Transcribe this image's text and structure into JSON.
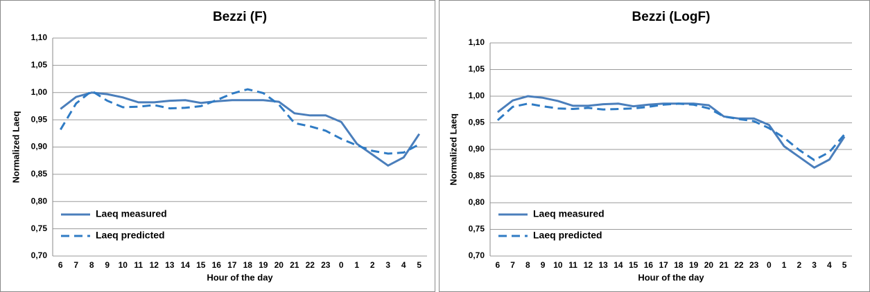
{
  "chart_data": [
    {
      "type": "line",
      "title": "Bezzi (F)",
      "x_label": "Hour of the day",
      "y_label": "Normalized Laeq",
      "categories": [
        "6",
        "7",
        "8",
        "9",
        "10",
        "11",
        "12",
        "13",
        "14",
        "15",
        "16",
        "17",
        "18",
        "19",
        "20",
        "21",
        "22",
        "23",
        "0",
        "1",
        "2",
        "3",
        "4",
        "5"
      ],
      "series": [
        {
          "name": "Laeq measured",
          "color": "#4a7ebb",
          "linestyle": "solid",
          "values": [
            0.97,
            0.992,
            1.0,
            0.997,
            0.991,
            0.982,
            0.982,
            0.985,
            0.986,
            0.981,
            0.984,
            0.986,
            0.986,
            0.986,
            0.983,
            0.962,
            0.958,
            0.958,
            0.946,
            0.906,
            0.886,
            0.866,
            0.881,
            0.924
          ]
        },
        {
          "name": "Laeq predicted",
          "color": "#2f7bc4",
          "linestyle": "dashed",
          "values": [
            0.932,
            0.98,
            1.003,
            0.985,
            0.973,
            0.974,
            0.977,
            0.971,
            0.972,
            0.975,
            0.986,
            0.998,
            1.006,
            0.999,
            0.978,
            0.944,
            0.938,
            0.93,
            0.915,
            0.903,
            0.893,
            0.888,
            0.89,
            0.905
          ]
        }
      ],
      "ylim": [
        0.7,
        1.1
      ],
      "yticks": [
        {
          "value": 0.7,
          "label": "0,70"
        },
        {
          "value": 0.75,
          "label": "0,75"
        },
        {
          "value": 0.8,
          "label": "0,80"
        },
        {
          "value": 0.85,
          "label": "0,85"
        },
        {
          "value": 0.9,
          "label": "0,90"
        },
        {
          "value": 0.95,
          "label": "0,95"
        },
        {
          "value": 1.0,
          "label": "1,00"
        },
        {
          "value": 1.05,
          "label": "1,05"
        },
        {
          "value": 1.1,
          "label": "1,10"
        }
      ],
      "grid": true,
      "legend": "lower left"
    },
    {
      "type": "line",
      "title": "Bezzi (LogF)",
      "x_label": "Hour of the day",
      "y_label": "Normalized Laeq",
      "categories": [
        "6",
        "7",
        "8",
        "9",
        "10",
        "11",
        "12",
        "13",
        "14",
        "15",
        "16",
        "17",
        "18",
        "19",
        "20",
        "21",
        "22",
        "23",
        "0",
        "1",
        "2",
        "3",
        "4",
        "5"
      ],
      "series": [
        {
          "name": "Laeq measured",
          "color": "#4a7ebb",
          "linestyle": "solid",
          "values": [
            0.97,
            0.992,
            1.0,
            0.997,
            0.991,
            0.982,
            0.982,
            0.985,
            0.986,
            0.981,
            0.984,
            0.986,
            0.986,
            0.986,
            0.983,
            0.962,
            0.958,
            0.958,
            0.946,
            0.906,
            0.886,
            0.866,
            0.881,
            0.924
          ]
        },
        {
          "name": "Laeq predicted",
          "color": "#2f7bc4",
          "linestyle": "dashed",
          "values": [
            0.955,
            0.98,
            0.986,
            0.981,
            0.977,
            0.976,
            0.978,
            0.975,
            0.976,
            0.977,
            0.98,
            0.984,
            0.986,
            0.984,
            0.977,
            0.962,
            0.957,
            0.953,
            0.94,
            0.922,
            0.899,
            0.88,
            0.895,
            0.928
          ]
        }
      ],
      "ylim": [
        0.7,
        1.1
      ],
      "yticks": [
        {
          "value": 0.7,
          "label": "0,70"
        },
        {
          "value": 0.75,
          "label": "0,75"
        },
        {
          "value": 0.8,
          "label": "0,80"
        },
        {
          "value": 0.85,
          "label": "0,85"
        },
        {
          "value": 0.9,
          "label": "0,90"
        },
        {
          "value": 0.95,
          "label": "0,95"
        },
        {
          "value": 1.0,
          "label": "1,00"
        },
        {
          "value": 1.05,
          "label": "1,05"
        },
        {
          "value": 1.1,
          "label": "1,10"
        }
      ],
      "grid": true,
      "legend": "lower left"
    }
  ]
}
